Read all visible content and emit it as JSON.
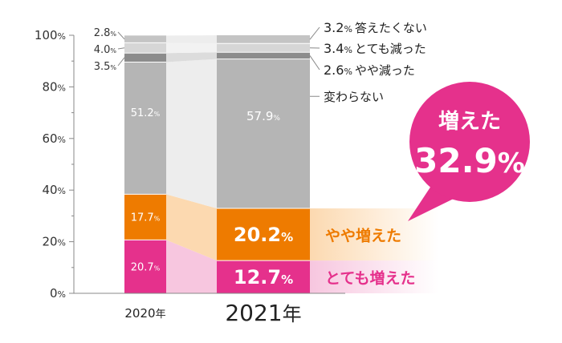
{
  "chart_data": {
    "type": "bar",
    "stacked": true,
    "percent_axis": true,
    "categories": [
      "2020年",
      "2021年"
    ],
    "ylim": [
      0,
      100
    ],
    "y_ticks": [
      "0%",
      "20%",
      "40%",
      "60%",
      "80%",
      "100%"
    ],
    "series": [
      {
        "name": "とても増えた",
        "values": [
          20.7,
          12.7
        ],
        "labels": [
          "20.7",
          "12.7"
        ],
        "color": "#e5318c",
        "connector": "#f7c6df"
      },
      {
        "name": "やや増えた",
        "values": [
          17.7,
          20.2
        ],
        "labels": [
          "17.7",
          "20.2"
        ],
        "color": "#ee7b00",
        "connector": "#fcd9b0"
      },
      {
        "name": "変わらない",
        "values": [
          51.2,
          57.9
        ],
        "labels": [
          "51.2",
          "57.9"
        ],
        "color": "#b5b5b5",
        "connector": "#ededed"
      },
      {
        "name": "やや減った",
        "values": [
          3.5,
          2.6
        ],
        "labels": [
          "3.5",
          "2.6"
        ],
        "color": "#8c8c8c",
        "connector": "#dcdcdc"
      },
      {
        "name": "とても減った",
        "values": [
          4.0,
          3.4
        ],
        "labels": [
          "4.0",
          "3.4"
        ],
        "color": "#d6d6d6",
        "connector": "#f2f2f2"
      },
      {
        "name": "答えたくない",
        "values": [
          2.8,
          3.2
        ],
        "labels": [
          "2.8",
          "3.2"
        ],
        "color": "#c4c4c4",
        "connector": "#ededed"
      }
    ],
    "callout": {
      "title": "増えた",
      "value": "32.9%",
      "color": "#e5318c"
    }
  }
}
